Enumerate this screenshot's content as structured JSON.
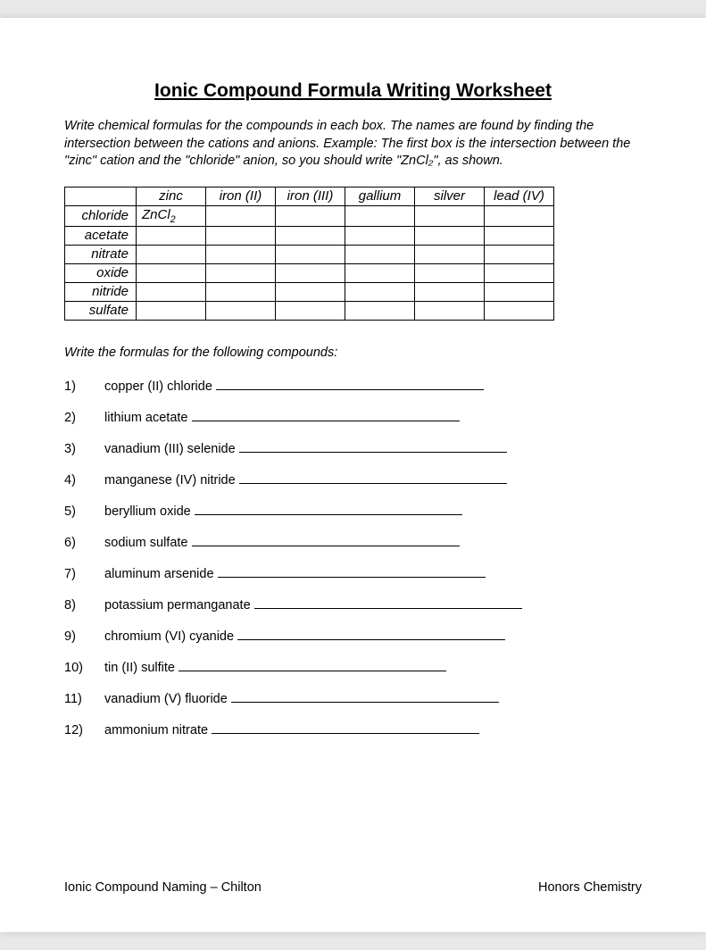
{
  "title": "Ionic Compound Formula Writing Worksheet",
  "instructions": "Write chemical formulas for the compounds in each box.  The names are found by finding the intersection between the cations and anions.  Example:  The first box is the intersection between the \"zinc\" cation and the \"chloride\" anion, so you should write \"ZnCl₂\", as shown.",
  "table": {
    "cations": [
      "zinc",
      "iron (II)",
      "iron (III)",
      "gallium",
      "silver",
      "lead (IV)"
    ],
    "anions": [
      "chloride",
      "acetate",
      "nitrate",
      "oxide",
      "nitride",
      "sulfate"
    ],
    "prefilled": {
      "r0c0_base": "ZnCl",
      "r0c0_sub": "2"
    }
  },
  "section2_prompt": "Write the formulas for the following compounds:",
  "questions": [
    {
      "n": "1)",
      "text": "copper (II) chloride"
    },
    {
      "n": "2)",
      "text": "lithium acetate"
    },
    {
      "n": "3)",
      "text": "vanadium (III) selenide"
    },
    {
      "n": "4)",
      "text": "manganese (IV) nitride"
    },
    {
      "n": "5)",
      "text": "beryllium oxide"
    },
    {
      "n": "6)",
      "text": "sodium sulfate"
    },
    {
      "n": "7)",
      "text": "aluminum arsenide"
    },
    {
      "n": "8)",
      "text": "potassium permanganate"
    },
    {
      "n": "9)",
      "text": "chromium (VI) cyanide"
    },
    {
      "n": "10)",
      "text": "tin (II) sulfite"
    },
    {
      "n": "11)",
      "text": "vanadium (V) fluoride"
    },
    {
      "n": "12)",
      "text": "ammonium nitrate"
    }
  ],
  "footer_left": "Ionic Compound Naming – Chilton",
  "footer_right": "Honors Chemistry"
}
